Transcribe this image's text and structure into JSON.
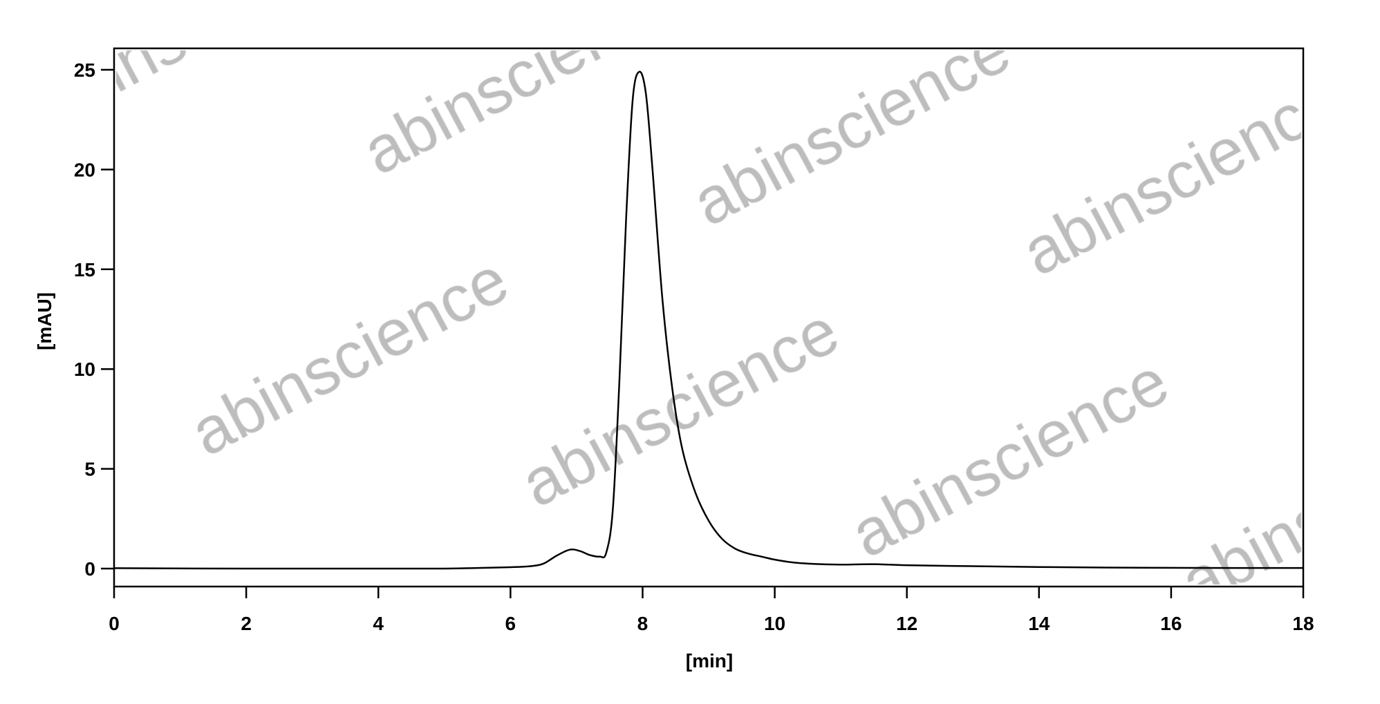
{
  "watermark": "abinscience",
  "chart_data": {
    "type": "line",
    "title": "",
    "xlabel": "[min]",
    "ylabel": "[mAU]",
    "xlim": [
      0,
      18
    ],
    "ylim": [
      -1,
      26.5
    ],
    "xticks": [
      0,
      2,
      4,
      6,
      8,
      10,
      12,
      14,
      16,
      18
    ],
    "yticks": [
      0,
      5,
      10,
      15,
      20,
      25
    ],
    "grid": false,
    "line_color": "#000000",
    "series": [
      {
        "x": [
          0,
          2,
          4,
          5,
          5.5,
          6,
          6.3,
          6.5,
          6.7,
          6.9,
          7.05,
          7.2,
          7.35,
          7.45,
          7.55,
          7.65,
          7.75,
          7.85,
          7.95,
          8.05,
          8.15,
          8.3,
          8.45,
          8.6,
          8.8,
          9.0,
          9.2,
          9.4,
          9.6,
          9.8,
          10.0,
          10.3,
          10.7,
          11.0,
          11.5,
          12,
          13,
          14,
          15,
          16,
          17,
          18
        ],
        "y": [
          0.02,
          0.0,
          0.0,
          0.0,
          0.03,
          0.07,
          0.12,
          0.25,
          0.65,
          0.95,
          0.88,
          0.68,
          0.6,
          0.8,
          3.0,
          9.5,
          17.5,
          23.5,
          24.9,
          23.8,
          20.0,
          13.5,
          9.0,
          6.0,
          3.8,
          2.4,
          1.5,
          1.0,
          0.75,
          0.6,
          0.45,
          0.3,
          0.22,
          0.2,
          0.22,
          0.17,
          0.12,
          0.08,
          0.05,
          0.04,
          0.03,
          0.03
        ]
      }
    ]
  }
}
